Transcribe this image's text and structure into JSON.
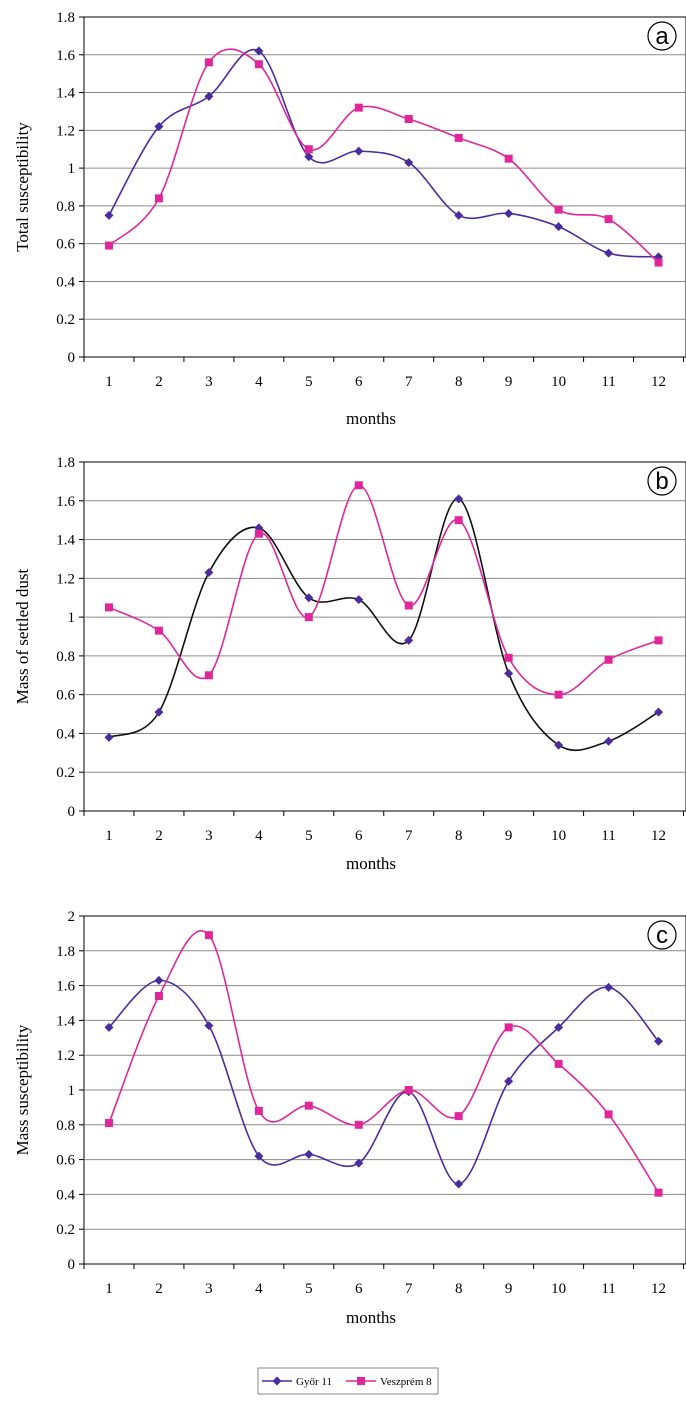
{
  "legend": {
    "entries": [
      {
        "label": "Győr 11",
        "color": "#4b2c9e",
        "marker": "diamond"
      },
      {
        "label": "Veszprém 8",
        "color": "#e0279a",
        "marker": "square"
      }
    ]
  },
  "chart_data": [
    {
      "type": "line",
      "panel_label": "a",
      "xlabel": "months",
      "ylabel": "Total susceptibility",
      "categories": [
        "1",
        "2",
        "3",
        "4",
        "5",
        "6",
        "7",
        "8",
        "9",
        "10",
        "11",
        "12"
      ],
      "ylim": [
        0,
        1.8
      ],
      "yticks": [
        "0",
        "0.2",
        "0.4",
        "0.6",
        "0.8",
        "1",
        "1.2",
        "1.4",
        "1.6",
        "1.8"
      ],
      "grid": true,
      "series": [
        {
          "name": "Győr 11",
          "color": "#4b2c9e",
          "marker": "diamond",
          "values": [
            0.75,
            1.22,
            1.38,
            1.62,
            1.06,
            1.09,
            1.03,
            0.75,
            0.76,
            0.69,
            0.55,
            0.53
          ]
        },
        {
          "name": "Veszprém 8",
          "color": "#e0279a",
          "marker": "square",
          "values": [
            0.59,
            0.84,
            1.56,
            1.55,
            1.1,
            1.32,
            1.26,
            1.16,
            1.05,
            0.78,
            0.73,
            0.5
          ]
        }
      ]
    },
    {
      "type": "line",
      "panel_label": "b",
      "xlabel": "months",
      "ylabel": "Mass of settled dust",
      "categories": [
        "1",
        "2",
        "3",
        "4",
        "5",
        "6",
        "7",
        "8",
        "9",
        "10",
        "11",
        "12"
      ],
      "ylim": [
        0,
        1.8
      ],
      "yticks": [
        "0",
        "0.2",
        "0.4",
        "0.6",
        "0.8",
        "1",
        "1.2",
        "1.4",
        "1.6",
        "1.8"
      ],
      "grid": true,
      "series": [
        {
          "name": "Győr 11",
          "color": "#4b2c9e",
          "line_color": "#111111",
          "marker": "diamond",
          "values": [
            0.38,
            0.51,
            1.23,
            1.46,
            1.1,
            1.09,
            0.88,
            1.61,
            0.71,
            0.34,
            0.36,
            0.51
          ]
        },
        {
          "name": "Veszprém 8",
          "color": "#e0279a",
          "marker": "square",
          "values": [
            1.05,
            0.93,
            0.7,
            1.43,
            1.0,
            1.68,
            1.06,
            1.5,
            0.79,
            0.6,
            0.78,
            0.88
          ]
        }
      ]
    },
    {
      "type": "line",
      "panel_label": "c",
      "xlabel": "months",
      "ylabel": "Mass susceptibility",
      "categories": [
        "1",
        "2",
        "3",
        "4",
        "5",
        "6",
        "7",
        "8",
        "9",
        "10",
        "11",
        "12"
      ],
      "ylim": [
        0,
        2
      ],
      "yticks": [
        "0",
        "0.2",
        "0.4",
        "0.6",
        "0.8",
        "1",
        "1.2",
        "1.4",
        "1.6",
        "1.8",
        "2"
      ],
      "grid": true,
      "series": [
        {
          "name": "Győr 11",
          "color": "#4b2c9e",
          "marker": "diamond",
          "values": [
            1.36,
            1.63,
            1.37,
            0.62,
            0.63,
            0.58,
            0.99,
            0.46,
            1.05,
            1.36,
            1.59,
            1.28
          ]
        },
        {
          "name": "Veszprém 8",
          "color": "#e0279a",
          "marker": "square",
          "values": [
            0.81,
            1.54,
            1.89,
            0.88,
            0.91,
            0.8,
            1.0,
            0.85,
            1.36,
            1.15,
            0.86,
            0.41
          ]
        }
      ]
    }
  ]
}
